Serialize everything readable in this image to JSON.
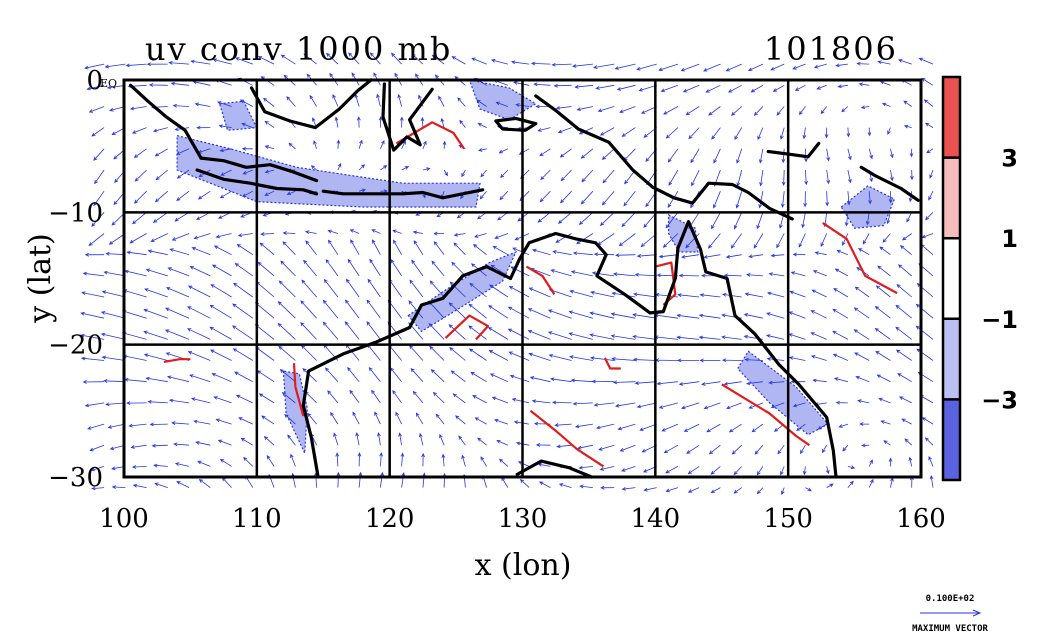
{
  "chart_data": {
    "type": "vector-field",
    "title": "uv conv 1000 mb",
    "timestamp": "101806",
    "xlabel": "x (lon)",
    "ylabel": "y (lat)",
    "xlim": [
      100,
      160
    ],
    "ylim": [
      -30,
      0
    ],
    "x_ticks": [
      {
        "value": 100,
        "label": "100"
      },
      {
        "value": 110,
        "label": "110"
      },
      {
        "value": 120,
        "label": "120"
      },
      {
        "value": 130,
        "label": "130"
      },
      {
        "value": 140,
        "label": "140"
      },
      {
        "value": 150,
        "label": "150"
      },
      {
        "value": 160,
        "label": "160"
      }
    ],
    "y_ticks": [
      {
        "value": 0,
        "label": "0"
      },
      {
        "value": -10,
        "label": "−10"
      },
      {
        "value": -20,
        "label": "−20"
      },
      {
        "value": -30,
        "label": "−30"
      }
    ],
    "y_top_extra_label": "EQ",
    "grid": true,
    "colorbar": {
      "bins": [
        {
          "color": "#e9524f"
        },
        {
          "color": "#f5bcbc"
        },
        {
          "color": "#ffffff"
        },
        {
          "color": "#bcbff2"
        },
        {
          "color": "#5a62e0"
        }
      ],
      "boundary_labels": [
        {
          "position": 1,
          "label": "3"
        },
        {
          "position": 2,
          "label": "1"
        },
        {
          "position": 3,
          "label": "−1"
        },
        {
          "position": 4,
          "label": "−3"
        }
      ]
    },
    "vector_legend": {
      "value_label": "0.100E+02",
      "caption": "MAXIMUM VECTOR"
    },
    "colors": {
      "vector": "#2436e6",
      "positive_contour": "#e21b1b",
      "negative_fill": "#6e7ae6",
      "coast": "#000000"
    },
    "coastline": [
      {
        "name": "sumatra-south-coast",
        "points": [
          [
            100.5,
            -0.4
          ],
          [
            101.8,
            -1.6
          ],
          [
            103.2,
            -2.8
          ],
          [
            104.6,
            -3.8
          ],
          [
            105.8,
            -5.9
          ]
        ]
      },
      {
        "name": "borneo-south-coast",
        "points": [
          [
            109.6,
            -0.6
          ],
          [
            110.6,
            -2.4
          ],
          [
            112.5,
            -3.1
          ],
          [
            114.4,
            -3.6
          ],
          [
            116.2,
            -2.2
          ],
          [
            117.6,
            -0.8
          ],
          [
            118.6,
            0
          ]
        ]
      },
      {
        "name": "sulawesi",
        "points": [
          [
            119.6,
            -0.3
          ],
          [
            119.5,
            -2.8
          ],
          [
            120.3,
            -5.3
          ],
          [
            121.3,
            -4.3
          ],
          [
            122.3,
            -4.9
          ],
          [
            121.5,
            -3.0
          ],
          [
            123.2,
            -0.7
          ]
        ]
      },
      {
        "name": "java-north",
        "points": [
          [
            105.8,
            -5.9
          ],
          [
            107.5,
            -6.1
          ],
          [
            109.2,
            -6.6
          ],
          [
            111.0,
            -6.4
          ],
          [
            112.6,
            -6.9
          ],
          [
            114.5,
            -7.6
          ]
        ]
      },
      {
        "name": "java-south",
        "points": [
          [
            105.5,
            -6.8
          ],
          [
            107.5,
            -7.5
          ],
          [
            109.5,
            -7.8
          ],
          [
            111.5,
            -8.2
          ],
          [
            113.5,
            -8.3
          ],
          [
            114.5,
            -8.6
          ]
        ]
      },
      {
        "name": "lesser-sundas",
        "points": [
          [
            115,
            -8.4
          ],
          [
            116.5,
            -8.6
          ],
          [
            118,
            -8.6
          ],
          [
            119.5,
            -8.6
          ],
          [
            121,
            -8.6
          ],
          [
            122.5,
            -8.5
          ],
          [
            124,
            -8.9
          ],
          [
            125.5,
            -8.6
          ],
          [
            127,
            -8.3
          ]
        ]
      },
      {
        "name": "seram",
        "points": [
          [
            128,
            -3.1
          ],
          [
            129.5,
            -2.9
          ],
          [
            131,
            -3.3
          ],
          [
            130.2,
            -3.8
          ],
          [
            128.5,
            -3.7
          ],
          [
            128,
            -3.1
          ]
        ]
      },
      {
        "name": "new-guinea-south",
        "points": [
          [
            131,
            -1.2
          ],
          [
            132.5,
            -2.3
          ],
          [
            134.2,
            -3.7
          ],
          [
            136.5,
            -4.7
          ],
          [
            138.3,
            -6.8
          ],
          [
            139.8,
            -8.1
          ],
          [
            141.4,
            -8.9
          ],
          [
            142.8,
            -9.3
          ],
          [
            144,
            -7.8
          ],
          [
            145.8,
            -7.9
          ],
          [
            147,
            -8.5
          ],
          [
            148.6,
            -9.7
          ],
          [
            150.3,
            -10.5
          ]
        ]
      },
      {
        "name": "new-britain",
        "points": [
          [
            148.5,
            -5.4
          ],
          [
            150,
            -5.6
          ],
          [
            151.5,
            -5.8
          ],
          [
            152.3,
            -4.8
          ]
        ]
      },
      {
        "name": "solomons",
        "points": [
          [
            155.5,
            -6.6
          ],
          [
            156.5,
            -7.2
          ],
          [
            158.5,
            -8.2
          ],
          [
            159.8,
            -9.1
          ]
        ]
      },
      {
        "name": "australia-mainland",
        "points": [
          [
            114.6,
            -29.9
          ],
          [
            114.1,
            -27.0
          ],
          [
            113.5,
            -24.6
          ],
          [
            113.9,
            -22.0
          ],
          [
            116.5,
            -20.7
          ],
          [
            119.0,
            -19.8
          ],
          [
            121.5,
            -18.7
          ],
          [
            122.4,
            -17.0
          ],
          [
            124.0,
            -16.5
          ],
          [
            125.5,
            -14.8
          ],
          [
            127.3,
            -14.1
          ],
          [
            129.1,
            -15.0
          ],
          [
            129.8,
            -13.5
          ],
          [
            130.5,
            -12.3
          ],
          [
            132.5,
            -11.6
          ],
          [
            134.0,
            -12.0
          ],
          [
            135.5,
            -12.3
          ],
          [
            136.3,
            -13.2
          ],
          [
            135.6,
            -14.8
          ],
          [
            137.7,
            -16.2
          ],
          [
            139.6,
            -17.6
          ],
          [
            140.6,
            -17.5
          ],
          [
            141.5,
            -15.0
          ],
          [
            141.7,
            -12.7
          ],
          [
            142.5,
            -10.7
          ],
          [
            143.4,
            -12.8
          ],
          [
            143.8,
            -14.5
          ],
          [
            145.4,
            -15.0
          ],
          [
            146.0,
            -17.8
          ],
          [
            147.5,
            -19.2
          ],
          [
            149.3,
            -21.5
          ],
          [
            150.8,
            -23.0
          ],
          [
            152.9,
            -25.5
          ],
          [
            153.4,
            -28.0
          ],
          [
            153.6,
            -30.0
          ]
        ]
      },
      {
        "name": "gulf-floor",
        "points": [
          [
            129.6,
            -29.8
          ],
          [
            131.4,
            -28.8
          ],
          [
            133.5,
            -29.3
          ],
          [
            135.2,
            -30
          ]
        ]
      }
    ],
    "positive_contours": [
      {
        "points": [
          [
            120.5,
            -4.8
          ],
          [
            123.2,
            -3.2
          ],
          [
            124.8,
            -4.0
          ],
          [
            125.6,
            -5.2
          ]
        ]
      },
      {
        "points": [
          [
            124.2,
            -19.5
          ],
          [
            126.0,
            -17.8
          ],
          [
            127.4,
            -18.6
          ],
          [
            126.5,
            -19.6
          ]
        ]
      },
      {
        "points": [
          [
            130.3,
            -14.1
          ],
          [
            131.5,
            -14.8
          ],
          [
            132.4,
            -16.2
          ]
        ]
      },
      {
        "points": [
          [
            140.0,
            -14.1
          ],
          [
            141.2,
            -13.8
          ],
          [
            141.5,
            -16.2
          ],
          [
            140.6,
            -17.0
          ]
        ]
      },
      {
        "points": [
          [
            145.0,
            -23.0
          ],
          [
            148.6,
            -25.2
          ],
          [
            150.6,
            -26.9
          ],
          [
            151.6,
            -27.6
          ]
        ]
      },
      {
        "points": [
          [
            152.6,
            -10.8
          ],
          [
            154.4,
            -12.0
          ],
          [
            155.8,
            -14.8
          ],
          [
            158.2,
            -16.1
          ]
        ]
      },
      {
        "points": [
          [
            112.8,
            -21.4
          ],
          [
            112.9,
            -23.2
          ],
          [
            113.5,
            -25.4
          ]
        ]
      },
      {
        "points": [
          [
            103.0,
            -21.3
          ],
          [
            104.2,
            -21.1
          ],
          [
            105.0,
            -21.1
          ]
        ]
      },
      {
        "points": [
          [
            136.2,
            -21.0
          ],
          [
            136.6,
            -21.8
          ],
          [
            137.4,
            -21.8
          ]
        ]
      },
      {
        "points": [
          [
            130.6,
            -25.0
          ],
          [
            132.5,
            -26.5
          ],
          [
            134.1,
            -27.9
          ],
          [
            136.1,
            -29.2
          ]
        ]
      }
    ],
    "negative_regions": [
      {
        "points": [
          [
            107.2,
            -1.8
          ],
          [
            109.0,
            -1.6
          ],
          [
            110.0,
            -3.6
          ],
          [
            107.8,
            -3.8
          ]
        ]
      },
      {
        "points": [
          [
            104.0,
            -4.2
          ],
          [
            108.0,
            -5.2
          ],
          [
            113.0,
            -6.6
          ],
          [
            117.0,
            -7.2
          ],
          [
            121.0,
            -7.8
          ],
          [
            126.8,
            -7.8
          ],
          [
            126.5,
            -9.6
          ],
          [
            118.0,
            -9.6
          ],
          [
            110.0,
            -9.2
          ],
          [
            104.0,
            -6.8
          ]
        ]
      },
      {
        "points": [
          [
            121.4,
            -17.8
          ],
          [
            124.0,
            -16.0
          ],
          [
            127.5,
            -13.8
          ],
          [
            129.5,
            -13.0
          ],
          [
            128.5,
            -15.2
          ],
          [
            125.0,
            -17.4
          ],
          [
            122.4,
            -19.0
          ]
        ]
      },
      {
        "points": [
          [
            147.0,
            -20.5
          ],
          [
            150.6,
            -23.2
          ],
          [
            153.0,
            -26.0
          ],
          [
            151.5,
            -26.8
          ],
          [
            148.6,
            -24.4
          ],
          [
            146.2,
            -21.8
          ]
        ]
      },
      {
        "points": [
          [
            154.0,
            -9.6
          ],
          [
            156.0,
            -8.0
          ],
          [
            158.0,
            -9.0
          ],
          [
            157.2,
            -11.0
          ],
          [
            155.0,
            -11.2
          ]
        ]
      },
      {
        "points": [
          [
            112.0,
            -22.0
          ],
          [
            112.2,
            -25.2
          ],
          [
            113.6,
            -28.2
          ],
          [
            113.8,
            -24.8
          ],
          [
            113.2,
            -22.2
          ]
        ]
      },
      {
        "points": [
          [
            126.0,
            0
          ],
          [
            129.0,
            -0.6
          ],
          [
            131.0,
            -1.8
          ],
          [
            129.0,
            -3.0
          ],
          [
            126.8,
            -2.2
          ]
        ]
      },
      {
        "points": [
          [
            141.0,
            -10.2
          ],
          [
            143.0,
            -11.2
          ],
          [
            143.2,
            -13.0
          ],
          [
            141.8,
            -13.0
          ],
          [
            141.0,
            -11.6
          ]
        ]
      }
    ]
  }
}
